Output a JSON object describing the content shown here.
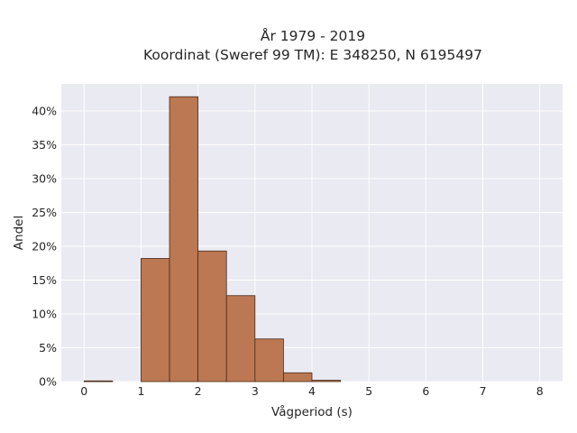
{
  "chart_data": {
    "type": "bar",
    "title": "År 1979 - 2019",
    "subtitle": "Koordinat (Sweref 99 TM): E 348250, N 6195497",
    "xlabel": "Vågperiod (s)",
    "ylabel": "Andel",
    "xlim": [
      -0.4,
      8.4
    ],
    "ylim": [
      0,
      44
    ],
    "x_ticks": [
      0,
      1,
      2,
      3,
      4,
      5,
      6,
      7,
      8
    ],
    "x_tick_labels": [
      "0",
      "1",
      "2",
      "3",
      "4",
      "5",
      "6",
      "7",
      "8"
    ],
    "y_ticks": [
      0,
      5,
      10,
      15,
      20,
      25,
      30,
      35,
      40
    ],
    "y_tick_labels": [
      "0%",
      "5%",
      "10%",
      "15%",
      "20%",
      "25%",
      "30%",
      "35%",
      "40%"
    ],
    "bin_width": 0.5,
    "bins": [
      {
        "x0": 0.0,
        "value": 0.1
      },
      {
        "x0": 0.5,
        "value": 0.0
      },
      {
        "x0": 1.0,
        "value": 18.2
      },
      {
        "x0": 1.5,
        "value": 42.1
      },
      {
        "x0": 2.0,
        "value": 19.3
      },
      {
        "x0": 2.5,
        "value": 12.7
      },
      {
        "x0": 3.0,
        "value": 6.3
      },
      {
        "x0": 3.5,
        "value": 1.3
      },
      {
        "x0": 4.0,
        "value": 0.2
      }
    ],
    "grid": true,
    "colors": {
      "bar_fill": "#bb7853",
      "bar_edge": "#4a2a18",
      "plot_bg": "#eaeaf2",
      "grid": "#ffffff",
      "text": "#262626"
    }
  }
}
